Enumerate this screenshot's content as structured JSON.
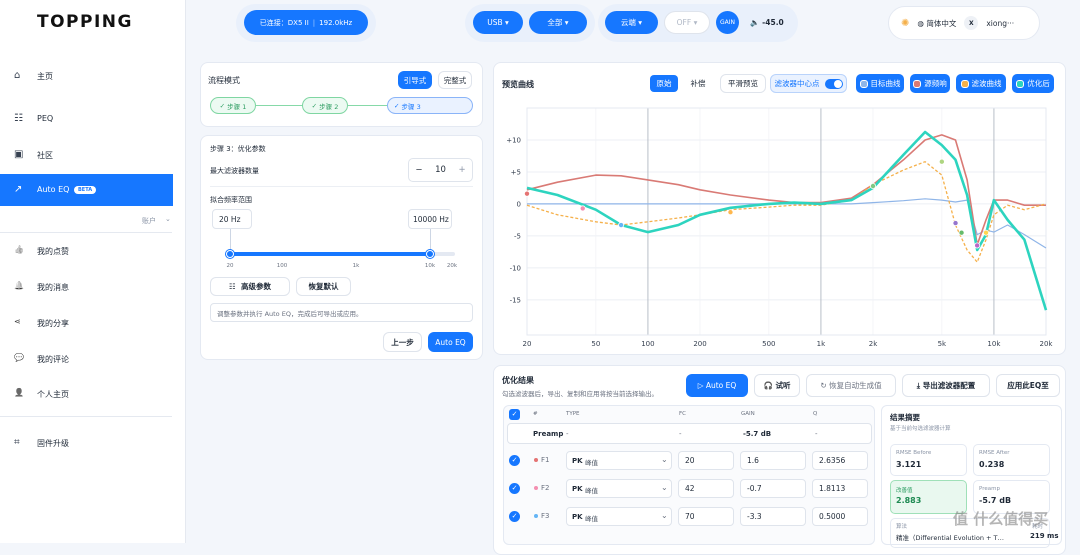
{
  "sidebar": {
    "logo": "TOPPING",
    "nav": [
      "主页",
      "PEQ",
      "社区",
      "Auto EQ"
    ],
    "beta": "BETA",
    "account_label": "账户",
    "account": [
      "我的点赞",
      "我的消息",
      "我的分享",
      "我的评论",
      "个人主页"
    ],
    "firmware": "固件升级"
  },
  "topbar": {
    "connected": "已连接：DX5 II",
    "rate": "192.0kHz",
    "source": "USB",
    "scope": "全部",
    "cloud": "云端",
    "off": "OFF",
    "gain": "GAIN",
    "volume": "-45.0",
    "language": "简体中文",
    "avatar": "X",
    "user": "xiong···"
  },
  "flow": {
    "title": "流程模式",
    "modes": [
      "引导式",
      "完整式"
    ],
    "steps": [
      "步骤 1",
      "步骤 2",
      "步骤 3"
    ]
  },
  "params": {
    "title": "步骤 3：优化参数",
    "max_filters_label": "最大滤波器数量",
    "minus": "−",
    "max_filters": "10",
    "plus": "+",
    "range_label": "拟合频率范围",
    "range_low": "20 Hz",
    "range_high": "10000 Hz",
    "slider_ticks": [
      "20",
      "100",
      "1k",
      "10k",
      "20k"
    ],
    "advanced": "高级参数",
    "reset": "恢复默认",
    "hint": "调整参数并执行 Auto EQ，完成后可导出或应用。",
    "prev": "上一步",
    "run": "Auto EQ"
  },
  "preview": {
    "title": "预览曲线",
    "view_modes": [
      "原始",
      "补偿"
    ],
    "smooth": "平滑预览",
    "centers_toggle": "滤波器中心点",
    "type": "line",
    "xscale": "log",
    "grid": true,
    "xlim": [
      20,
      20000
    ],
    "xticks": [
      20,
      50,
      100,
      200,
      500,
      {
        "value": 1000,
        "label": "1k"
      },
      {
        "value": 2000,
        "label": "2k"
      },
      {
        "value": 5000,
        "label": "5k"
      },
      {
        "value": 10000,
        "label": "10k"
      },
      {
        "value": 20000,
        "label": "20k"
      }
    ],
    "ylim": [
      -20.5,
      15
    ],
    "yticks": [
      {
        "value": 10,
        "label": "+10"
      },
      {
        "value": 5,
        "label": "+5"
      },
      0,
      -5,
      -10,
      -15
    ],
    "x": [
      20,
      30,
      50,
      70,
      100,
      150,
      200,
      300,
      500,
      700,
      1000,
      1500,
      2000,
      3000,
      4000,
      5000,
      6000,
      7000,
      8000,
      9000,
      10000,
      12000,
      15000,
      20000
    ],
    "series": [
      {
        "name": "目标曲线",
        "color": "#8fb5e8",
        "width": 1.2,
        "dashed": false,
        "values": [
          0,
          0,
          0,
          0,
          0,
          0,
          0,
          0,
          0,
          0,
          0,
          0,
          0.2,
          0.5,
          0.8,
          0.6,
          0.3,
          0.6,
          -4.8,
          -4.1,
          -4.4,
          -3.3,
          -4.8,
          -6.9
        ]
      },
      {
        "name": "源频响",
        "color": "#d97a75",
        "width": 1.6,
        "dashed": false,
        "values": [
          2.2,
          3.4,
          4.5,
          4.4,
          3.75,
          3.0,
          2.2,
          1.4,
          0.6,
          0.2,
          0.2,
          0.9,
          3.0,
          6.9,
          10,
          10.8,
          10,
          3.75,
          -6.4,
          -2.5,
          0.6,
          0.6,
          -0.2,
          -0.2
        ]
      },
      {
        "name": "滤波曲线",
        "color": "#f5b04a",
        "width": 1.3,
        "dashed": true,
        "values": [
          -0.2,
          -1.7,
          -2.8,
          -3.3,
          -2.8,
          -2.2,
          -1.7,
          -0.9,
          -0.5,
          -0.2,
          -0.2,
          0.6,
          3.0,
          5.3,
          6.6,
          4.5,
          -3.3,
          -7.2,
          -9.1,
          -5.6,
          -1.7,
          -0.2,
          -0.9,
          0
        ]
      },
      {
        "name": "优化后",
        "color": "#2dd4bf",
        "width": 2.6,
        "dashed": false,
        "values": [
          2.5,
          1.4,
          -0.9,
          -3.3,
          -4.4,
          -3.3,
          -1.7,
          -0.6,
          0,
          0.2,
          0,
          0.6,
          2.5,
          7.7,
          11.25,
          9.2,
          6.9,
          1.4,
          -7.2,
          -4.8,
          0.6,
          -2.5,
          -5.6,
          -16.6
        ]
      }
    ],
    "centers": {
      "x": [
        20,
        42,
        70,
        300,
        2000,
        5000,
        6000,
        6500,
        8000,
        9000
      ],
      "y": [
        1.6,
        -0.7,
        -3.3,
        -1.3,
        2.8,
        6.6,
        -3.0,
        -4.5,
        -6.5,
        -4.5
      ],
      "colors": [
        "#e57373",
        "#f48fb1",
        "#64b5f6",
        "#ffb74d",
        "#81c784",
        "#aed581",
        "#9575cd",
        "#66bb6a",
        "#ba68c8",
        "#ffd54f"
      ]
    }
  },
  "results": {
    "title": "优化结果",
    "subtitle": "勾选滤波器后，导出、复制和应用将按当前选择输出。",
    "actions": [
      "Auto EQ",
      "试听",
      "恢复自动生成值",
      "导出滤波器配置",
      "应用此EQ至"
    ],
    "table": {
      "headers": [
        "#",
        "TYPE",
        "FC",
        "GAIN",
        "Q"
      ],
      "preamp": [
        "Preamp",
        "-",
        "-",
        "-5.7 dB",
        "-"
      ],
      "rows": [
        [
          "F1",
          "PK",
          "峰值",
          "20",
          "1.6",
          "2.6356"
        ],
        [
          "F2",
          "PK",
          "峰值",
          "42",
          "-0.7",
          "1.8113"
        ],
        [
          "F3",
          "PK",
          "峰值",
          "70",
          "-3.3",
          "0.5000"
        ]
      ],
      "row_colors": [
        "#e57373",
        "#f48fb1",
        "#64b5f6"
      ]
    }
  },
  "summary": {
    "title": "结果摘要",
    "subtitle": "基于当前勾选滤波器计算",
    "cards": [
      [
        "RMSE Before",
        "3.121"
      ],
      [
        "RMSE After",
        "0.238"
      ],
      [
        "改善值",
        "2.883"
      ],
      [
        "Preamp",
        "-5.7 dB"
      ]
    ],
    "algorithm_label": "算法",
    "algorithm": "精准（Differential Evolution + T…",
    "time_label": "耗时",
    "time": "219 ms"
  },
  "watermark": "值 什么值得买"
}
